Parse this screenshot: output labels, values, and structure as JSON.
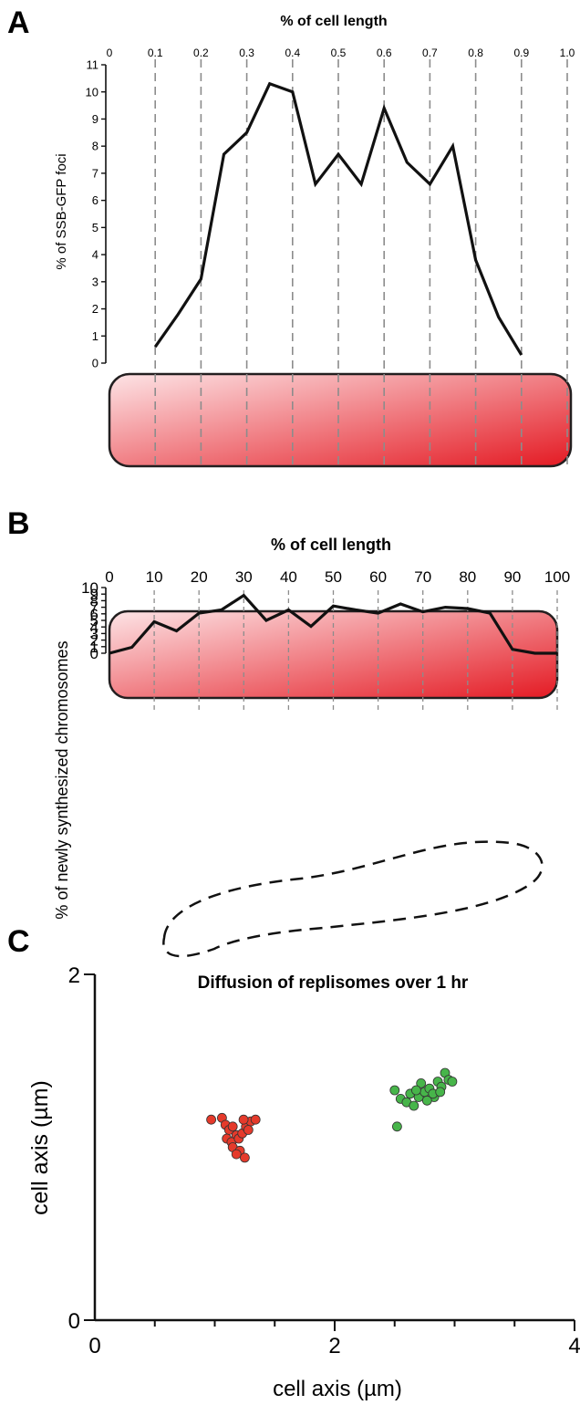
{
  "colors": {
    "line": "#111111",
    "grid": "#8c8c8c",
    "cell_light": "#fde4e6",
    "cell_dark": "#e41a23",
    "cell_stroke": "#231f20",
    "red_points": "#e53a2b",
    "green_points": "#47b54a"
  },
  "chart_data": [
    {
      "panel": "A",
      "type": "line",
      "title": "% of cell length",
      "xlabel": "% of cell length",
      "ylabel": "% of SSB-GFP foci",
      "xlim": [
        0,
        1.0
      ],
      "ylim": [
        0,
        11
      ],
      "xtick_labels": [
        "0",
        "0.1",
        "0.2",
        "0.3",
        "0.4",
        "0.5",
        "0.6",
        "0.7",
        "0.8",
        "0.9",
        "1.0"
      ],
      "ytick_labels": [
        "0",
        "1",
        "2",
        "3",
        "4",
        "5",
        "6",
        "7",
        "8",
        "9",
        "10",
        "11"
      ],
      "grid": "vertical dashed",
      "x": [
        0.1,
        0.15,
        0.2,
        0.25,
        0.3,
        0.35,
        0.4,
        0.45,
        0.5,
        0.55,
        0.6,
        0.65,
        0.7,
        0.75,
        0.8,
        0.85,
        0.9
      ],
      "y": [
        0.6,
        1.8,
        3.1,
        7.7,
        8.5,
        10.3,
        10.0,
        6.6,
        7.7,
        6.6,
        9.4,
        7.4,
        6.6,
        8.0,
        3.8,
        1.7,
        0.3
      ]
    },
    {
      "panel": "B",
      "type": "line",
      "title": "% of cell length",
      "xlabel": "% of cell length",
      "ylabel": "% of newly synthesized chromosomes",
      "xlim": [
        0,
        100
      ],
      "ylim": [
        0,
        10
      ],
      "xtick_labels": [
        "0",
        "10",
        "20",
        "30",
        "40",
        "50",
        "60",
        "70",
        "80",
        "90",
        "100"
      ],
      "ytick_labels": [
        "0",
        "1",
        "2",
        "3",
        "4",
        "5",
        "6",
        "7",
        "8",
        "9",
        "10"
      ],
      "grid": "vertical dashed",
      "x": [
        0,
        5,
        10,
        15,
        20,
        25,
        30,
        35,
        40,
        45,
        50,
        55,
        60,
        65,
        70,
        75,
        80,
        85,
        90,
        95,
        100
      ],
      "y": [
        0,
        0.9,
        4.8,
        3.4,
        6.1,
        6.6,
        8.8,
        5.0,
        6.6,
        4.1,
        7.2,
        6.6,
        6.1,
        7.5,
        6.3,
        7.0,
        6.8,
        6.1,
        0.6,
        0,
        0
      ]
    },
    {
      "panel": "C",
      "type": "scatter",
      "title": "Diffusion of replisomes over 1 hr",
      "xlabel": "cell axis (µm)",
      "ylabel": "cell axis (µm)",
      "xlim": [
        0,
        4
      ],
      "ylim": [
        0,
        2
      ],
      "xtick_labels": [
        "0",
        "2",
        "4"
      ],
      "ytick_labels": [
        "0",
        "2"
      ],
      "series": [
        {
          "color": "red",
          "points": [
            [
              0.97,
              1.16
            ],
            [
              1.06,
              1.17
            ],
            [
              1.09,
              1.13
            ],
            [
              1.12,
              1.1
            ],
            [
              1.15,
              1.12
            ],
            [
              1.18,
              1.07
            ],
            [
              1.1,
              1.05
            ],
            [
              1.14,
              1.03
            ],
            [
              1.2,
              1.05
            ],
            [
              1.23,
              1.08
            ],
            [
              1.26,
              1.12
            ],
            [
              1.3,
              1.15
            ],
            [
              1.34,
              1.16
            ],
            [
              1.24,
              1.16
            ],
            [
              1.15,
              1.0
            ],
            [
              1.21,
              0.98
            ],
            [
              1.25,
              0.94
            ],
            [
              1.18,
              0.96
            ],
            [
              1.28,
              1.1
            ]
          ]
        },
        {
          "color": "green",
          "points": [
            [
              2.5,
              1.33
            ],
            [
              2.52,
              1.12
            ],
            [
              2.55,
              1.28
            ],
            [
              2.6,
              1.26
            ],
            [
              2.63,
              1.31
            ],
            [
              2.66,
              1.24
            ],
            [
              2.7,
              1.29
            ],
            [
              2.72,
              1.37
            ],
            [
              2.75,
              1.32
            ],
            [
              2.79,
              1.34
            ],
            [
              2.83,
              1.29
            ],
            [
              2.86,
              1.38
            ],
            [
              2.89,
              1.35
            ],
            [
              2.92,
              1.43
            ],
            [
              2.95,
              1.39
            ],
            [
              2.98,
              1.38
            ],
            [
              2.77,
              1.27
            ],
            [
              2.82,
              1.31
            ],
            [
              2.68,
              1.33
            ],
            [
              2.88,
              1.32
            ]
          ]
        }
      ]
    }
  ]
}
